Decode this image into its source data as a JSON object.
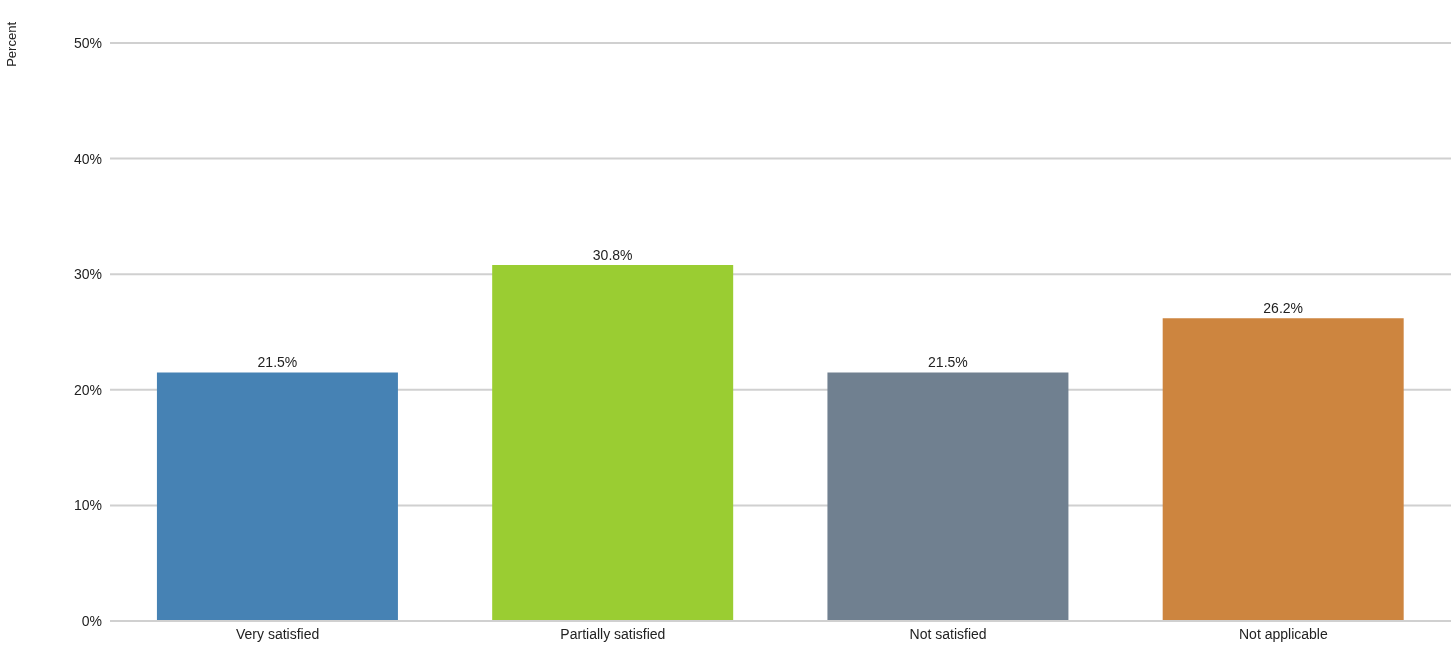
{
  "chart_data": {
    "type": "bar",
    "ylabel": "Percent",
    "categories": [
      "Very satisfied",
      "Partially satisfied",
      "Not satisfied",
      "Not applicable"
    ],
    "values": [
      21.5,
      30.8,
      21.5,
      26.2
    ],
    "colors": [
      "#4682b4",
      "#9acd32",
      "#708090",
      "#cd853f"
    ],
    "value_labels": [
      "21.5%",
      "30.8%",
      "21.5%",
      "26.2%"
    ],
    "ylim": [
      0,
      50
    ],
    "yticks": [
      {
        "value": 0,
        "label": "0%"
      },
      {
        "value": 10,
        "label": "10%"
      },
      {
        "value": 20,
        "label": "20%"
      },
      {
        "value": 30,
        "label": "30%"
      },
      {
        "value": 40,
        "label": "40%"
      },
      {
        "value": 50,
        "label": "50%"
      }
    ],
    "grid": "y"
  }
}
